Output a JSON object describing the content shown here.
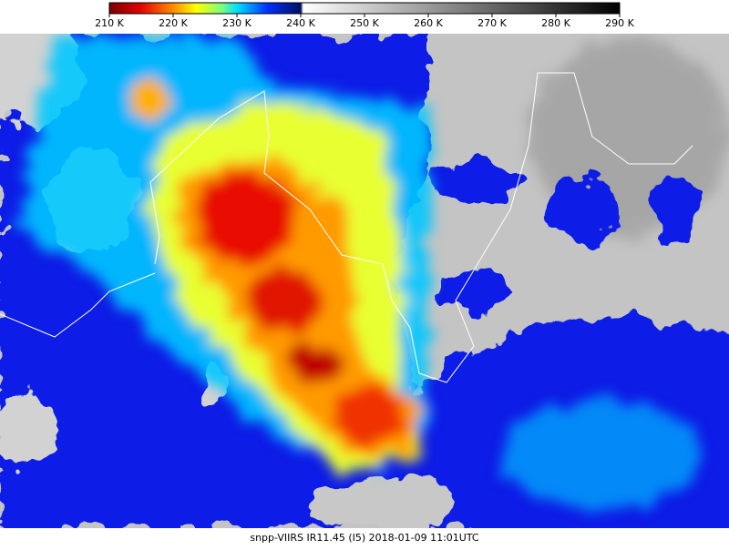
{
  "colorbar": {
    "labels": [
      "210 K",
      "220 K",
      "230 K",
      "240 K",
      "250 K",
      "260 K",
      "270 K",
      "280 K",
      "290 K"
    ]
  },
  "caption": "snpp-VIIRS IR11.45 (I5) 2018-01-09 11:01UTC"
}
